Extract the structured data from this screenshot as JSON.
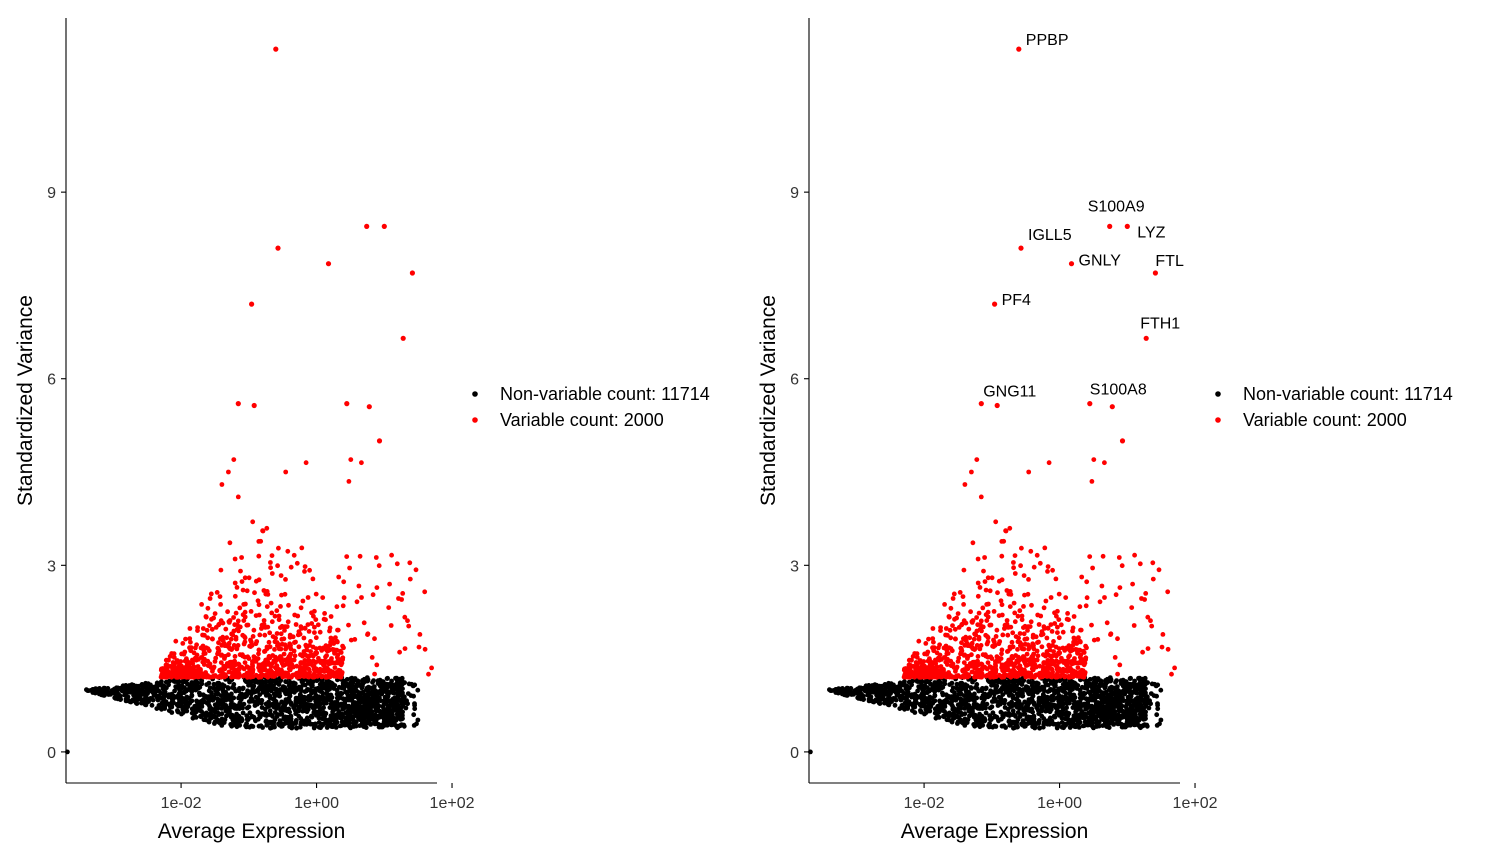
{
  "colors": {
    "variable": "#ff0000",
    "non_variable": "#000000",
    "axis": "#000000"
  },
  "chart_data": [
    {
      "type": "scatter",
      "panel": "left",
      "xlabel": "Average Expression",
      "ylabel": "Standardized Variance",
      "x_scale": "log10",
      "xlim": [
        0.0002,
        60
      ],
      "ylim": [
        -0.5,
        11.8
      ],
      "x_ticks": [
        {
          "value": 0.01,
          "label": "1e-02"
        },
        {
          "value": 1,
          "label": "1e+00"
        },
        {
          "value": 100,
          "label": "1e+02"
        }
      ],
      "y_ticks": [
        {
          "value": 0,
          "label": "0"
        },
        {
          "value": 3,
          "label": "3"
        },
        {
          "value": 6,
          "label": "6"
        },
        {
          "value": 9,
          "label": "9"
        }
      ],
      "legend": {
        "position": "right",
        "entries": [
          {
            "label": "Non-variable count: 11714",
            "color": "#000000"
          },
          {
            "label": "Variable count: 2000",
            "color": "#ff0000"
          }
        ]
      },
      "highlighted_points": [
        {
          "x": 0.25,
          "y": 11.3
        },
        {
          "x": 5.5,
          "y": 8.45
        },
        {
          "x": 10,
          "y": 8.45
        },
        {
          "x": 0.27,
          "y": 8.1
        },
        {
          "x": 1.5,
          "y": 7.85
        },
        {
          "x": 26,
          "y": 7.7
        },
        {
          "x": 0.11,
          "y": 7.2
        },
        {
          "x": 19,
          "y": 6.65
        },
        {
          "x": 0.07,
          "y": 5.6
        },
        {
          "x": 0.12,
          "y": 5.57
        },
        {
          "x": 2.8,
          "y": 5.6
        },
        {
          "x": 6,
          "y": 5.55
        },
        {
          "x": 8.5,
          "y": 5.0
        }
      ],
      "labels": []
    },
    {
      "type": "scatter",
      "panel": "right",
      "xlabel": "Average Expression",
      "ylabel": "Standardized Variance",
      "x_scale": "log10",
      "xlim": [
        0.0002,
        60
      ],
      "ylim": [
        -0.5,
        11.8
      ],
      "x_ticks": [
        {
          "value": 0.01,
          "label": "1e-02"
        },
        {
          "value": 1,
          "label": "1e+00"
        },
        {
          "value": 100,
          "label": "1e+02"
        }
      ],
      "y_ticks": [
        {
          "value": 0,
          "label": "0"
        },
        {
          "value": 3,
          "label": "3"
        },
        {
          "value": 6,
          "label": "6"
        },
        {
          "value": 9,
          "label": "9"
        }
      ],
      "legend": {
        "position": "right",
        "entries": [
          {
            "label": "Non-variable count: 11714",
            "color": "#000000"
          },
          {
            "label": "Variable count: 2000",
            "color": "#ff0000"
          }
        ]
      },
      "highlighted_points": [
        {
          "x": 0.25,
          "y": 11.3
        },
        {
          "x": 5.5,
          "y": 8.45
        },
        {
          "x": 10,
          "y": 8.45
        },
        {
          "x": 0.27,
          "y": 8.1
        },
        {
          "x": 1.5,
          "y": 7.85
        },
        {
          "x": 26,
          "y": 7.7
        },
        {
          "x": 0.11,
          "y": 7.2
        },
        {
          "x": 19,
          "y": 6.65
        },
        {
          "x": 0.07,
          "y": 5.6
        },
        {
          "x": 0.12,
          "y": 5.57
        },
        {
          "x": 2.8,
          "y": 5.6
        },
        {
          "x": 6,
          "y": 5.55
        },
        {
          "x": 8.5,
          "y": 5.0
        }
      ],
      "labels": [
        {
          "text": "PPBP",
          "x": 0.25,
          "y": 11.3
        },
        {
          "text": "S100A9",
          "x": 5.5,
          "y": 8.45
        },
        {
          "text": "LYZ",
          "x": 10,
          "y": 8.45
        },
        {
          "text": "IGLL5",
          "x": 0.27,
          "y": 8.1
        },
        {
          "text": "GNLY",
          "x": 1.5,
          "y": 7.85
        },
        {
          "text": "FTL",
          "x": 26,
          "y": 7.7
        },
        {
          "text": "PF4",
          "x": 0.11,
          "y": 7.2
        },
        {
          "text": "FTH1",
          "x": 19,
          "y": 6.65
        },
        {
          "text": "GNG11",
          "x": 0.12,
          "y": 5.57
        },
        {
          "text": "S100A8",
          "x": 2.8,
          "y": 5.6
        }
      ]
    }
  ]
}
